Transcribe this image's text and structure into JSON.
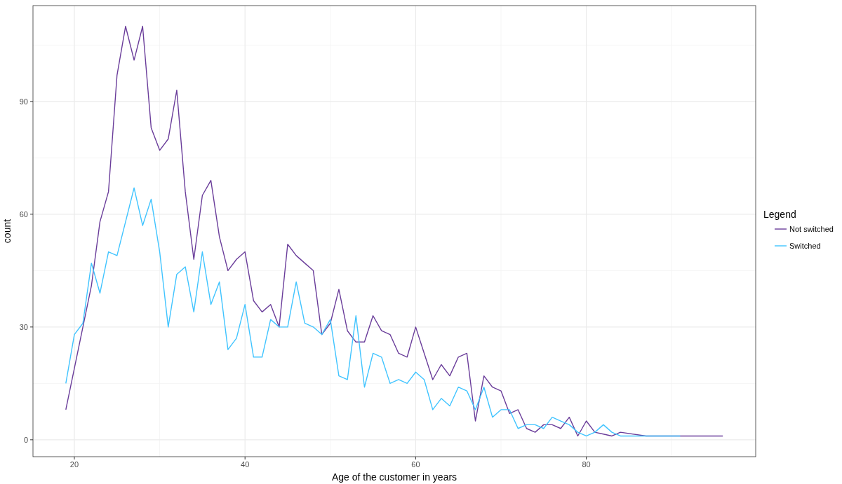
{
  "chart_data": {
    "type": "line",
    "xlabel": "Age of the customer in years",
    "ylabel": "count",
    "legend_title": "Legend",
    "legend": "right",
    "xlim": [
      15.15,
      99.85
    ],
    "xticks": [
      20,
      40,
      60,
      80
    ],
    "ylim": [
      -4.5,
      115.5
    ],
    "yticks": [
      0,
      30,
      60,
      90
    ],
    "grid": true,
    "series": [
      {
        "name": "Not switched",
        "color": "#6a3d9a",
        "x": [
          19,
          20,
          21,
          22,
          23,
          24,
          25,
          26,
          27,
          28,
          29,
          30,
          31,
          32,
          33,
          34,
          35,
          36,
          37,
          38,
          39,
          40,
          41,
          42,
          43,
          44,
          45,
          46,
          47,
          48,
          49,
          50,
          51,
          52,
          53,
          54,
          55,
          56,
          57,
          58,
          59,
          60,
          61,
          62,
          63,
          64,
          65,
          66,
          67,
          68,
          69,
          70,
          71,
          72,
          73,
          74,
          75,
          76,
          77,
          78,
          79,
          80,
          81,
          82,
          83,
          84,
          87,
          96
        ],
        "values": [
          8,
          19,
          30,
          41,
          58,
          66,
          97,
          110,
          101,
          110,
          83,
          77,
          80,
          93,
          66,
          48,
          65,
          69,
          54,
          45,
          48,
          50,
          37,
          34,
          36,
          30,
          52,
          49,
          47,
          45,
          28,
          31,
          40,
          29,
          26,
          26,
          33,
          29,
          28,
          23,
          22,
          30,
          23,
          16,
          20,
          17,
          22,
          23,
          5,
          17,
          14,
          13,
          7,
          8,
          3,
          2,
          4,
          4,
          3,
          6,
          1,
          5,
          2,
          1.5,
          1,
          2,
          1,
          1
        ]
      },
      {
        "name": "Switched",
        "color": "#40c4ff",
        "x": [
          19,
          20,
          21,
          22,
          23,
          24,
          25,
          26,
          27,
          28,
          29,
          30,
          31,
          32,
          33,
          34,
          35,
          36,
          37,
          38,
          39,
          40,
          41,
          42,
          43,
          44,
          45,
          46,
          47,
          48,
          49,
          50,
          51,
          52,
          53,
          54,
          55,
          56,
          57,
          58,
          59,
          60,
          61,
          62,
          63,
          64,
          65,
          66,
          67,
          68,
          69,
          70,
          71,
          72,
          73,
          74,
          75,
          76,
          77,
          78,
          79,
          80,
          81,
          82,
          83,
          84,
          91
        ],
        "values": [
          15,
          28,
          31,
          47,
          39,
          50,
          49,
          58,
          67,
          57,
          64,
          50,
          30,
          44,
          46,
          34,
          50,
          36,
          42,
          24,
          27,
          36,
          22,
          22,
          32,
          30,
          30,
          42,
          31,
          30,
          28,
          32,
          17,
          16,
          33,
          14,
          23,
          22,
          15,
          16,
          15,
          18,
          16,
          8,
          11,
          9,
          14,
          13,
          8,
          14,
          6,
          8,
          8,
          3,
          4,
          4,
          3,
          6,
          5,
          4,
          2,
          1,
          2,
          4,
          2,
          1,
          1
        ]
      }
    ]
  }
}
